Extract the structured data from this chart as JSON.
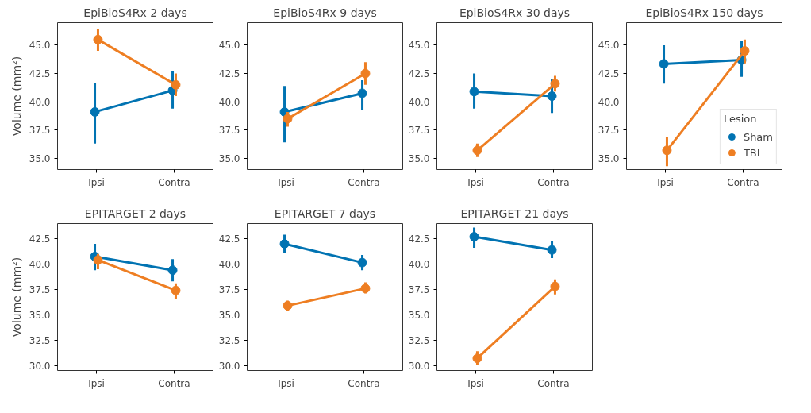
{
  "chart_data": [
    {
      "type": "line",
      "title": "EpiBioS4Rx 2 days",
      "ylabel": "Volume (mm²)",
      "categories": [
        "Ipsi",
        "Contra"
      ],
      "marker": "circle",
      "grid": false,
      "legend": false,
      "ylim": [
        34.0,
        47.0
      ],
      "yticks": [
        {
          "value": 35,
          "label": "35.0"
        },
        {
          "value": 37.5,
          "label": "37.5"
        },
        {
          "value": 40,
          "label": "40.0"
        },
        {
          "value": 42.5,
          "label": "42.5"
        },
        {
          "value": 45,
          "label": "45.0"
        }
      ],
      "series": [
        {
          "color": "#0173b2",
          "values": [
            39.1,
            41.0
          ],
          "errors": [
            [
              36.3,
              41.7
            ],
            [
              39.4,
              42.7
            ]
          ]
        },
        {
          "color": "#ee7e22",
          "values": [
            45.5,
            41.5
          ],
          "errors": [
            [
              44.5,
              46.4
            ],
            [
              40.5,
              42.5
            ]
          ]
        }
      ]
    },
    {
      "type": "line",
      "title": "EpiBioS4Rx 9 days",
      "categories": [
        "Ipsi",
        "Contra"
      ],
      "marker": "circle",
      "grid": false,
      "legend": false,
      "ylim": [
        34.0,
        47.0
      ],
      "yticks": [
        {
          "value": 35,
          "label": "35.0"
        },
        {
          "value": 37.5,
          "label": "37.5"
        },
        {
          "value": 40,
          "label": "40.0"
        },
        {
          "value": 42.5,
          "label": "42.5"
        },
        {
          "value": 45,
          "label": "45.0"
        }
      ],
      "series": [
        {
          "color": "#0173b2",
          "values": [
            39.1,
            40.75
          ],
          "errors": [
            [
              36.4,
              41.4
            ],
            [
              39.3,
              41.9
            ]
          ]
        },
        {
          "color": "#ee7e22",
          "values": [
            38.5,
            42.5
          ],
          "errors": [
            [
              37.8,
              39.1
            ],
            [
              41.5,
              43.5
            ]
          ]
        }
      ]
    },
    {
      "type": "line",
      "title": "EpiBioS4Rx 30 days",
      "categories": [
        "Ipsi",
        "Contra"
      ],
      "marker": "circle",
      "grid": false,
      "legend": false,
      "ylim": [
        34.0,
        47.0
      ],
      "yticks": [
        {
          "value": 35,
          "label": "35.0"
        },
        {
          "value": 37.5,
          "label": "37.5"
        },
        {
          "value": 40,
          "label": "40.0"
        },
        {
          "value": 42.5,
          "label": "42.5"
        },
        {
          "value": 45,
          "label": "45.0"
        }
      ],
      "series": [
        {
          "color": "#0173b2",
          "values": [
            40.9,
            40.5
          ],
          "errors": [
            [
              39.4,
              42.5
            ],
            [
              39.0,
              42.0
            ]
          ]
        },
        {
          "color": "#ee7e22",
          "values": [
            35.7,
            41.6
          ],
          "errors": [
            [
              35.1,
              36.3
            ],
            [
              40.9,
              42.3
            ]
          ]
        }
      ]
    },
    {
      "type": "line",
      "title": "EpiBioS4Rx 150 days",
      "categories": [
        "Ipsi",
        "Contra"
      ],
      "marker": "circle",
      "grid": false,
      "legend": "bottom right",
      "legend_title": "Lesion",
      "ylim": [
        34.0,
        47.0
      ],
      "yticks": [
        {
          "value": 35,
          "label": "35.0"
        },
        {
          "value": 37.5,
          "label": "37.5"
        },
        {
          "value": 40,
          "label": "40.0"
        },
        {
          "value": 42.5,
          "label": "42.5"
        },
        {
          "value": 45,
          "label": "45.0"
        }
      ],
      "series": [
        {
          "name": "Sham",
          "color": "#0173b2",
          "values": [
            43.35,
            43.7
          ],
          "errors": [
            [
              41.6,
              45.0
            ],
            [
              42.2,
              45.4
            ]
          ]
        },
        {
          "name": "TBI",
          "color": "#ee7e22",
          "values": [
            35.7,
            44.5
          ],
          "errors": [
            [
              34.3,
              36.9
            ],
            [
              43.4,
              45.5
            ]
          ]
        }
      ]
    },
    {
      "type": "line",
      "title": "EPITARGET 2 days",
      "ylabel": "Volume (mm²)",
      "categories": [
        "Ipsi",
        "Contra"
      ],
      "marker": "circle",
      "grid": false,
      "legend": false,
      "ylim": [
        29.5,
        44.0
      ],
      "yticks": [
        {
          "value": 30,
          "label": "30.0"
        },
        {
          "value": 32.5,
          "label": "32.5"
        },
        {
          "value": 35,
          "label": "35.0"
        },
        {
          "value": 37.5,
          "label": "37.5"
        },
        {
          "value": 40,
          "label": "40.0"
        },
        {
          "value": 42.5,
          "label": "42.5"
        }
      ],
      "series": [
        {
          "color": "#0173b2",
          "values": [
            40.75,
            39.4
          ],
          "errors": [
            [
              39.4,
              42.0
            ],
            [
              38.3,
              40.5
            ]
          ]
        },
        {
          "color": "#ee7e22",
          "values": [
            40.4,
            37.4
          ],
          "errors": [
            [
              39.5,
              41.0
            ],
            [
              36.6,
              38.1
            ]
          ]
        }
      ]
    },
    {
      "type": "line",
      "title": "EPITARGET 7 days",
      "categories": [
        "Ipsi",
        "Contra"
      ],
      "marker": "circle",
      "grid": false,
      "legend": false,
      "ylim": [
        29.5,
        44.0
      ],
      "yticks": [
        {
          "value": 30,
          "label": "30.0"
        },
        {
          "value": 32.5,
          "label": "32.5"
        },
        {
          "value": 35,
          "label": "35.0"
        },
        {
          "value": 37.5,
          "label": "37.5"
        },
        {
          "value": 40,
          "label": "40.0"
        },
        {
          "value": 42.5,
          "label": "42.5"
        }
      ],
      "series": [
        {
          "color": "#0173b2",
          "values": [
            42.0,
            40.15
          ],
          "errors": [
            [
              41.1,
              42.9
            ],
            [
              39.4,
              40.9
            ]
          ]
        },
        {
          "color": "#ee7e22",
          "values": [
            35.9,
            37.6
          ],
          "errors": [
            [
              35.4,
              36.4
            ],
            [
              37.1,
              38.2
            ]
          ]
        }
      ]
    },
    {
      "type": "line",
      "title": "EPITARGET 21 days",
      "categories": [
        "Ipsi",
        "Contra"
      ],
      "marker": "circle",
      "grid": false,
      "legend": false,
      "ylim": [
        29.5,
        44.0
      ],
      "yticks": [
        {
          "value": 30,
          "label": "30.0"
        },
        {
          "value": 32.5,
          "label": "32.5"
        },
        {
          "value": 35,
          "label": "35.0"
        },
        {
          "value": 37.5,
          "label": "37.5"
        },
        {
          "value": 40,
          "label": "40.0"
        },
        {
          "value": 42.5,
          "label": "42.5"
        }
      ],
      "series": [
        {
          "color": "#0173b2",
          "values": [
            42.7,
            41.4
          ],
          "errors": [
            [
              41.6,
              43.6
            ],
            [
              40.6,
              42.3
            ]
          ]
        },
        {
          "color": "#ee7e22",
          "values": [
            30.7,
            37.8
          ],
          "errors": [
            [
              30.0,
              31.4
            ],
            [
              37.0,
              38.5
            ]
          ]
        }
      ]
    }
  ]
}
